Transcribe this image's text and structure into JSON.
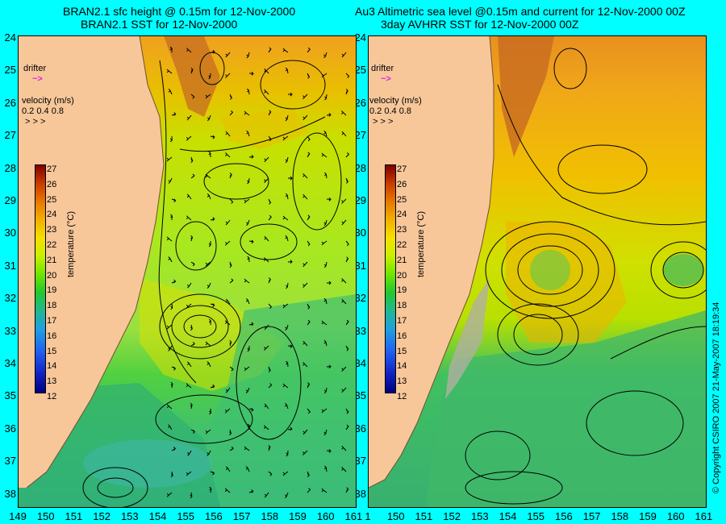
{
  "left_panel": {
    "title_line1": "BRAN2.1 sfc height @ 0.15m for 12-Nov-2000",
    "title_line2": "BRAN2.1 SST for 12-Nov-2000"
  },
  "right_panel": {
    "title_line1": "Au3 Altimetric sea level  @0.15m and current for 12-Nov-2000 00Z",
    "title_line2": "3day AVHRR SST for 12-Nov-2000 00Z"
  },
  "y_axis_labels": [
    "24",
    "25",
    "26",
    "27",
    "28",
    "29",
    "30",
    "31",
    "32",
    "33",
    "34",
    "35",
    "36",
    "37",
    "38"
  ],
  "x_axis_labels": [
    "149",
    "150",
    "151",
    "152",
    "153",
    "154",
    "155",
    "156",
    "157",
    "158",
    "159",
    "160",
    "161"
  ],
  "x_axis_labels_right": [
    "1",
    "150",
    "151",
    "152",
    "153",
    "154",
    "155",
    "156",
    "157",
    "158",
    "159",
    "160",
    "161"
  ],
  "legend": {
    "drifter_label": "drifter",
    "velocity_label": "velocity (m/s)",
    "velocity_values": "0.2 0.4 0.8"
  },
  "colorbar": {
    "title": "temperature (°C)",
    "ticks": [
      "27",
      "26",
      "25",
      "24",
      "23",
      "22",
      "21",
      "20",
      "19",
      "18",
      "17",
      "16",
      "15",
      "14",
      "13",
      "12"
    ],
    "colors": [
      "#800000",
      "#c83c00",
      "#e87800",
      "#f2b000",
      "#f6e000",
      "#c8f000",
      "#6ee600",
      "#22c830",
      "#20b890",
      "#20a0e0",
      "#2060f0",
      "#1020c0",
      "#000080"
    ]
  },
  "copyright": "© Copyright CSIRO 2007   21-May-2007 18:19:34",
  "colors": {
    "background": "#00ffff",
    "land": "#f7c79a",
    "drifter": "#e020e0"
  }
}
